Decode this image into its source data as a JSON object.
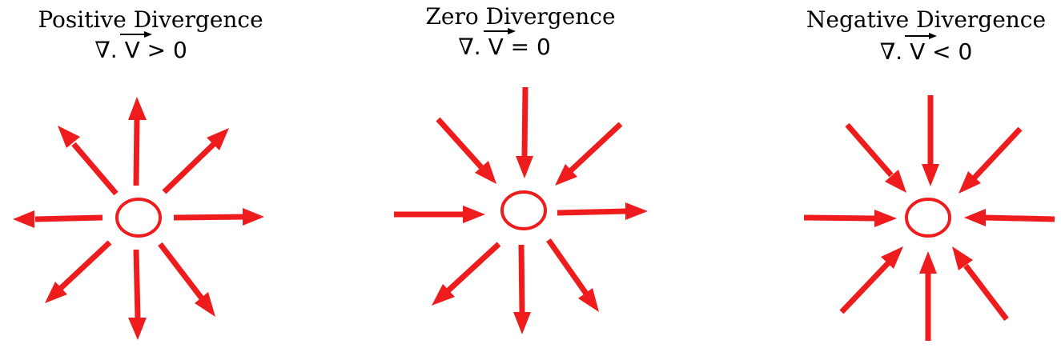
{
  "colors": {
    "arrow": "#ee1c1c",
    "text": "#000000"
  },
  "panels": [
    {
      "title": "Positive Divergence",
      "formula": {
        "nabla": "∇",
        "dot": ".",
        "vector": "V",
        "relation": "> 0"
      },
      "flow": "outward"
    },
    {
      "title": "Zero Divergence",
      "formula": {
        "nabla": "∇",
        "dot": ".",
        "vector": "V",
        "relation": "= 0"
      },
      "flow": "through"
    },
    {
      "title": "Negative Divergence",
      "formula": {
        "nabla": "∇",
        "dot": ".",
        "vector": "V",
        "relation": "< 0"
      },
      "flow": "inward"
    }
  ]
}
